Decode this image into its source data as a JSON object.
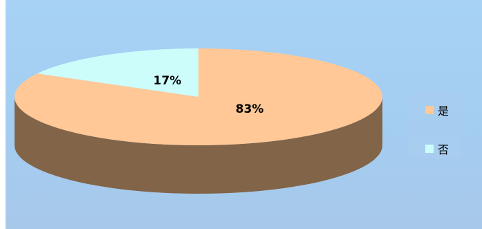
{
  "chart_data": {
    "type": "pie",
    "style": "3d",
    "categories": [
      "是",
      "否"
    ],
    "values": [
      83,
      17
    ],
    "data_labels": [
      "83%",
      "17%"
    ],
    "colors": [
      "#ffc896",
      "#cdfdfb"
    ],
    "side_color": "#826448",
    "legend_position": "right",
    "title": "",
    "background_color": "#a6d0f4"
  }
}
